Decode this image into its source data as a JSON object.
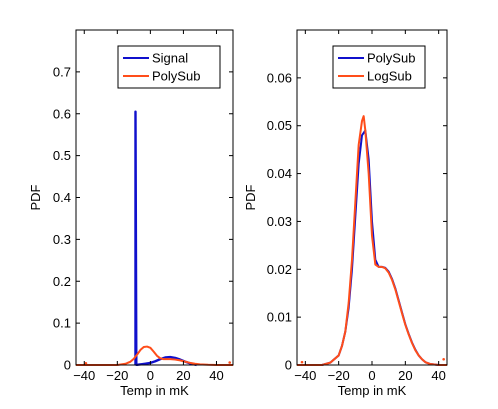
{
  "chart_data": [
    {
      "type": "line",
      "xlabel": "Temp in mK",
      "ylabel": "PDF",
      "xlim": [
        -45,
        50
      ],
      "ylim": [
        0,
        0.8
      ],
      "xticks": [
        -40,
        -20,
        0,
        20,
        40
      ],
      "yticks": [
        0,
        0.1,
        0.2,
        0.3,
        0.4,
        0.5,
        0.6,
        0.7
      ],
      "ytick_labels": [
        "0",
        "0.1",
        "0.2",
        "0.3",
        "0.4",
        "0.5",
        "0.6",
        "0.7"
      ],
      "legend_position": "top-center",
      "series": [
        {
          "name": "Signal",
          "color": "#1010cc",
          "x": [
            -9,
            -9,
            -8.5,
            -8,
            -7,
            -5,
            -3,
            0,
            3,
            6,
            9,
            12,
            15,
            18,
            21,
            24,
            28
          ],
          "y": [
            0,
            0.605,
            0.0005,
            0.0005,
            0.001,
            0.002,
            0.003,
            0.005,
            0.009,
            0.014,
            0.018,
            0.019,
            0.017,
            0.013,
            0.008,
            0.004,
            0
          ]
        },
        {
          "name": "PolySub",
          "color": "#ff4d1a",
          "x": [
            -45,
            -20,
            -15,
            -12,
            -10,
            -8,
            -6,
            -4,
            -2,
            0,
            2,
            4,
            6,
            8,
            10,
            12,
            15,
            18,
            21,
            24,
            27,
            30,
            35,
            40,
            50
          ],
          "y": [
            0,
            0,
            0.003,
            0.008,
            0.015,
            0.025,
            0.036,
            0.043,
            0.044,
            0.041,
            0.032,
            0.022,
            0.016,
            0.014,
            0.014,
            0.014,
            0.013,
            0.011,
            0.008,
            0.005,
            0.003,
            0.0015,
            0.0005,
            0,
            0
          ]
        }
      ],
      "outliers": [
        {
          "x": -39,
          "y": 0.004,
          "color": "#ff4d1a"
        },
        {
          "x": 48,
          "y": 0.006,
          "color": "#ff4d1a"
        }
      ]
    },
    {
      "type": "line",
      "xlabel": "Temp in mK",
      "ylabel": "PDF",
      "xlim": [
        -45,
        45
      ],
      "ylim": [
        0,
        0.07
      ],
      "xticks": [
        -40,
        -20,
        0,
        20,
        40
      ],
      "yticks": [
        0,
        0.01,
        0.02,
        0.03,
        0.04,
        0.05,
        0.06
      ],
      "ytick_labels": [
        "0",
        "0.01",
        "0.02",
        "0.03",
        "0.04",
        "0.05",
        "0.06"
      ],
      "legend_position": "top-center",
      "series": [
        {
          "name": "PolySub",
          "color": "#1010cc",
          "x": [
            -45,
            -30,
            -25,
            -20,
            -18,
            -16,
            -14,
            -12,
            -10,
            -8,
            -6,
            -4,
            -2,
            0,
            2,
            4,
            6,
            8,
            10,
            12,
            14,
            16,
            18,
            20,
            22,
            24,
            26,
            28,
            30,
            32,
            35,
            40,
            45
          ],
          "y": [
            0,
            0,
            0.0005,
            0.002,
            0.004,
            0.007,
            0.012,
            0.02,
            0.031,
            0.042,
            0.048,
            0.049,
            0.043,
            0.03,
            0.022,
            0.0205,
            0.0205,
            0.0203,
            0.0195,
            0.018,
            0.016,
            0.0135,
            0.011,
            0.0085,
            0.0065,
            0.0047,
            0.0032,
            0.002,
            0.0012,
            0.0006,
            0.0002,
            0,
            0
          ]
        },
        {
          "name": "LogSub",
          "color": "#ff4d1a",
          "x": [
            -45,
            -30,
            -25,
            -20,
            -18,
            -16,
            -14,
            -12,
            -10,
            -8,
            -6,
            -5,
            -4,
            -2,
            0,
            2,
            4,
            6,
            8,
            10,
            12,
            14,
            16,
            18,
            20,
            22,
            24,
            26,
            28,
            30,
            32,
            35,
            40,
            45
          ],
          "y": [
            0,
            0,
            0.0005,
            0.002,
            0.004,
            0.007,
            0.013,
            0.022,
            0.034,
            0.046,
            0.051,
            0.052,
            0.049,
            0.04,
            0.027,
            0.021,
            0.0205,
            0.0205,
            0.0202,
            0.0193,
            0.0178,
            0.0158,
            0.0133,
            0.0108,
            0.0084,
            0.0064,
            0.0046,
            0.0031,
            0.002,
            0.0012,
            0.0006,
            0.0002,
            0,
            0
          ]
        }
      ],
      "outliers": [
        {
          "x": -42,
          "y": 0.0006,
          "color": "#ff4d1a"
        },
        {
          "x": 43,
          "y": 0.0012,
          "color": "#ff4d1a"
        }
      ]
    }
  ]
}
